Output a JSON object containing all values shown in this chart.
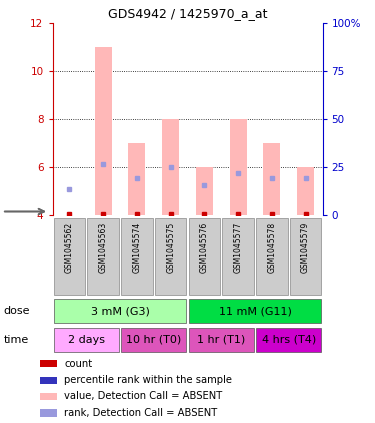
{
  "title": "GDS4942 / 1425970_a_at",
  "samples": [
    "GSM1045562",
    "GSM1045563",
    "GSM1045574",
    "GSM1045575",
    "GSM1045576",
    "GSM1045577",
    "GSM1045578",
    "GSM1045579"
  ],
  "bar_values": [
    null,
    11.0,
    7.0,
    8.0,
    6.0,
    8.0,
    7.0,
    6.0
  ],
  "rank_values": [
    5.1,
    6.15,
    5.55,
    6.0,
    5.25,
    5.75,
    5.55,
    5.55
  ],
  "count_values": [
    4.05,
    4.05,
    4.05,
    4.05,
    4.05,
    4.05,
    4.05,
    4.05
  ],
  "bar_color": "#ffb8b8",
  "rank_color": "#9999dd",
  "count_color": "#cc0000",
  "ylim_min": 4,
  "ylim_max": 12,
  "yticks_left": [
    4,
    6,
    8,
    10,
    12
  ],
  "yticks_right_pos": [
    4,
    6,
    8,
    10,
    12
  ],
  "yticks_right_labels": [
    "0",
    "25",
    "50",
    "75",
    "100%"
  ],
  "left_tick_color": "#cc0000",
  "right_tick_color": "#0000cc",
  "dose_groups": [
    {
      "label": "3 mM (G3)",
      "start": 0,
      "end": 4,
      "color": "#aaffaa"
    },
    {
      "label": "11 mM (G11)",
      "start": 4,
      "end": 8,
      "color": "#00dd44"
    }
  ],
  "time_colors": [
    "#ffaaff",
    "#dd55bb",
    "#dd55bb",
    "#cc00cc"
  ],
  "time_groups": [
    {
      "label": "2 days",
      "start": 0,
      "end": 2
    },
    {
      "label": "10 hr (T0)",
      "start": 2,
      "end": 4
    },
    {
      "label": "1 hr (T1)",
      "start": 4,
      "end": 6
    },
    {
      "label": "4 hrs (T4)",
      "start": 6,
      "end": 8
    }
  ],
  "legend_labels": [
    "count",
    "percentile rank within the sample",
    "value, Detection Call = ABSENT",
    "rank, Detection Call = ABSENT"
  ],
  "legend_colors": [
    "#cc0000",
    "#3333bb",
    "#ffb8b8",
    "#9999dd"
  ],
  "sample_box_color": "#cccccc",
  "sample_box_edge": "#888888",
  "fig_bg": "#ffffff"
}
